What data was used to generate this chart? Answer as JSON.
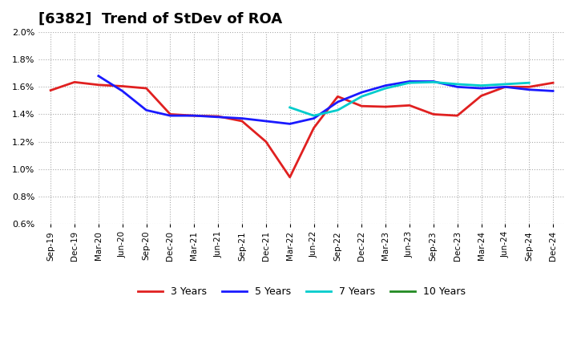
{
  "title": "[6382]  Trend of StDev of ROA",
  "title_fontsize": 13,
  "xlabel": "",
  "ylabel": "",
  "ylim": [
    0.006,
    0.02
  ],
  "yticks": [
    0.006,
    0.008,
    0.01,
    0.012,
    0.014,
    0.016,
    0.018,
    0.02
  ],
  "background_color": "#ffffff",
  "grid_color": "#aaaaaa",
  "x_labels": [
    "Sep-19",
    "Dec-19",
    "Mar-20",
    "Jun-20",
    "Sep-20",
    "Dec-20",
    "Mar-21",
    "Jun-21",
    "Sep-21",
    "Dec-21",
    "Mar-22",
    "Jun-22",
    "Sep-22",
    "Dec-22",
    "Mar-23",
    "Jun-23",
    "Sep-23",
    "Dec-23",
    "Mar-24",
    "Jun-24",
    "Sep-24",
    "Dec-24"
  ],
  "series": {
    "3 Years": {
      "color": "#e02020",
      "linewidth": 2.0,
      "values": [
        0.01575,
        0.01635,
        0.01615,
        0.01605,
        0.0159,
        0.014,
        0.0139,
        0.01385,
        0.0135,
        0.012,
        0.0094,
        0.013,
        0.0153,
        0.0146,
        0.01455,
        0.01465,
        0.014,
        0.0139,
        0.01535,
        0.016,
        0.016,
        0.0163
      ]
    },
    "5 Years": {
      "color": "#1a1aff",
      "linewidth": 2.0,
      "values": [
        null,
        null,
        0.0168,
        0.0157,
        0.0143,
        0.0139,
        0.0139,
        0.0138,
        0.0137,
        0.0135,
        0.0133,
        0.0137,
        0.0149,
        0.0156,
        0.0161,
        0.0164,
        0.0164,
        0.016,
        0.0159,
        0.016,
        0.0158,
        0.0157
      ]
    },
    "7 Years": {
      "color": "#00cccc",
      "linewidth": 2.0,
      "values": [
        null,
        null,
        null,
        null,
        null,
        null,
        null,
        null,
        null,
        null,
        0.0145,
        0.0139,
        0.0143,
        0.0153,
        0.0159,
        0.0163,
        0.01635,
        0.0162,
        0.0161,
        0.0162,
        0.0163,
        null
      ]
    },
    "10 Years": {
      "color": "#228B22",
      "linewidth": 2.0,
      "values": [
        null,
        null,
        null,
        null,
        null,
        null,
        null,
        null,
        null,
        null,
        null,
        null,
        null,
        null,
        null,
        null,
        null,
        null,
        null,
        null,
        null,
        null
      ]
    }
  },
  "legend_labels": [
    "3 Years",
    "5 Years",
    "7 Years",
    "10 Years"
  ],
  "legend_colors": [
    "#e02020",
    "#1a1aff",
    "#00cccc",
    "#228B22"
  ]
}
